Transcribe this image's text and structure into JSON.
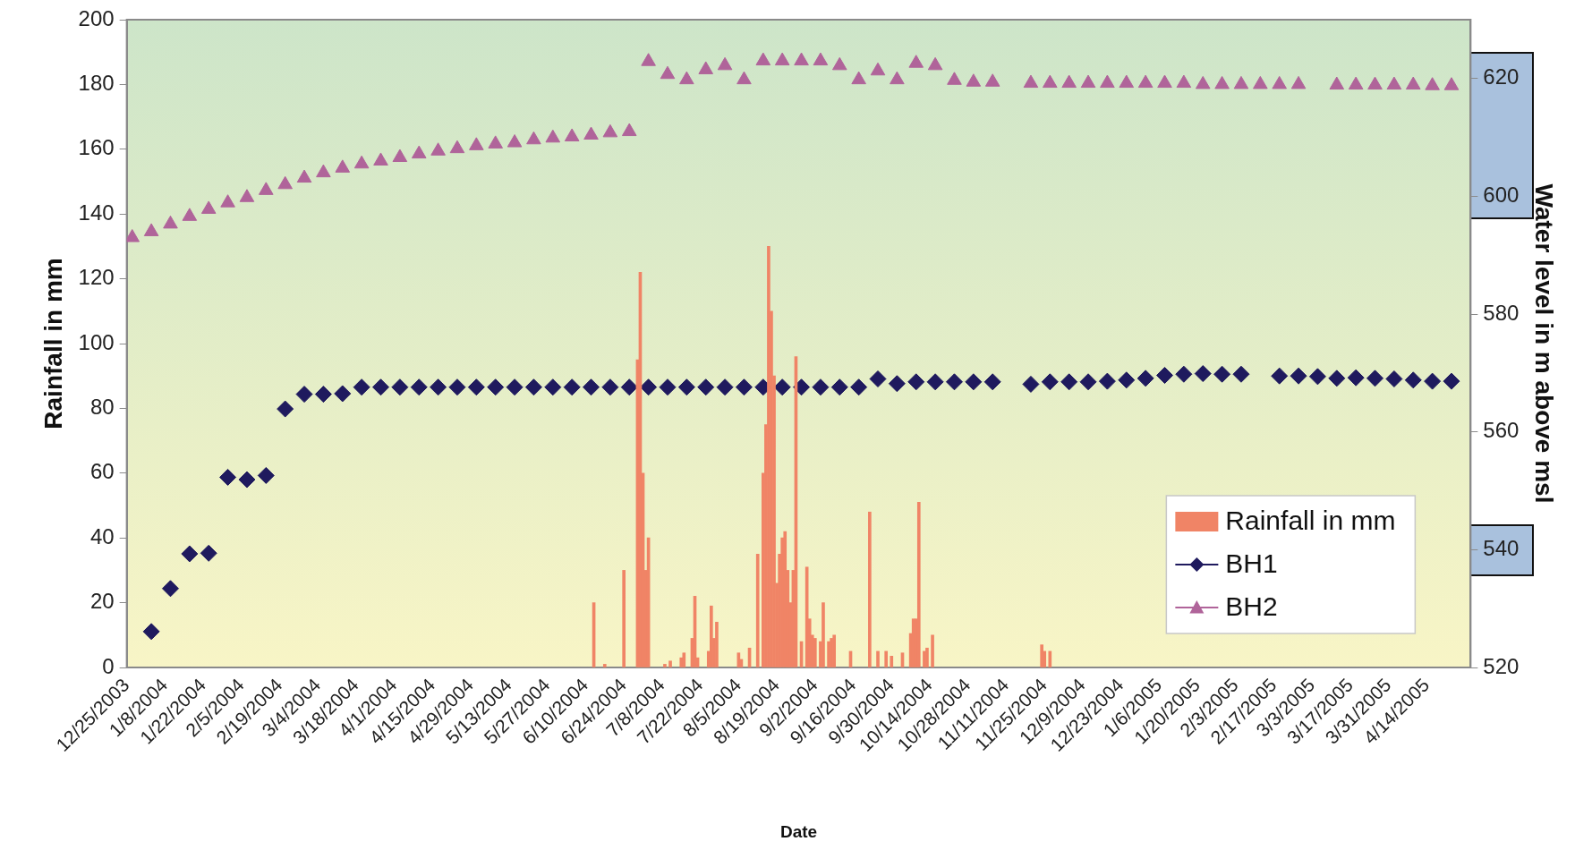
{
  "chart_data": {
    "type": "bar",
    "xlabel": "Date",
    "ylabel": "Rainfall in mm",
    "y2label": "Water level in m above msl",
    "xlim": [
      "2003-12-25",
      "2005-04-30"
    ],
    "xticks": [
      {
        "value": "2003-12-25",
        "label": "12/25/2003"
      },
      {
        "value": "2004-01-08",
        "label": "1/8/2004"
      },
      {
        "value": "2004-01-22",
        "label": "1/22/2004"
      },
      {
        "value": "2004-02-05",
        "label": "2/5/2004"
      },
      {
        "value": "2004-02-19",
        "label": "2/19/2004"
      },
      {
        "value": "2004-03-04",
        "label": "3/4/2004"
      },
      {
        "value": "2004-03-18",
        "label": "3/18/2004"
      },
      {
        "value": "2004-04-01",
        "label": "4/1/2004"
      },
      {
        "value": "2004-04-15",
        "label": "4/15/2004"
      },
      {
        "value": "2004-04-29",
        "label": "4/29/2004"
      },
      {
        "value": "2004-05-13",
        "label": "5/13/2004"
      },
      {
        "value": "2004-05-27",
        "label": "5/27/2004"
      },
      {
        "value": "2004-06-10",
        "label": "6/10/2004"
      },
      {
        "value": "2004-06-24",
        "label": "6/24/2004"
      },
      {
        "value": "2004-07-08",
        "label": "7/8/2004"
      },
      {
        "value": "2004-07-22",
        "label": "7/22/2004"
      },
      {
        "value": "2004-08-05",
        "label": "8/5/2004"
      },
      {
        "value": "2004-08-19",
        "label": "8/19/2004"
      },
      {
        "value": "2004-09-02",
        "label": "9/2/2004"
      },
      {
        "value": "2004-09-16",
        "label": "9/16/2004"
      },
      {
        "value": "2004-09-30",
        "label": "9/30/2004"
      },
      {
        "value": "2004-10-14",
        "label": "10/14/2004"
      },
      {
        "value": "2004-10-28",
        "label": "10/28/2004"
      },
      {
        "value": "2004-11-11",
        "label": "11/11/2004"
      },
      {
        "value": "2004-11-25",
        "label": "11/25/2004"
      },
      {
        "value": "2004-12-09",
        "label": "12/9/2004"
      },
      {
        "value": "2004-12-23",
        "label": "12/23/2004"
      },
      {
        "value": "2005-01-06",
        "label": "1/6/2005"
      },
      {
        "value": "2005-01-20",
        "label": "1/20/2005"
      },
      {
        "value": "2005-02-03",
        "label": "2/3/2005"
      },
      {
        "value": "2005-02-17",
        "label": "2/17/2005"
      },
      {
        "value": "2005-03-03",
        "label": "3/3/2005"
      },
      {
        "value": "2005-03-17",
        "label": "3/17/2005"
      },
      {
        "value": "2005-03-31",
        "label": "3/31/2005"
      },
      {
        "value": "2005-04-14",
        "label": "4/14/2005"
      }
    ],
    "ylim": [
      0,
      200
    ],
    "yticks": [
      0,
      20,
      40,
      60,
      80,
      100,
      120,
      140,
      160,
      180,
      200
    ],
    "y2lim": [
      520,
      630
    ],
    "y2ticks": [
      520,
      540,
      560,
      580,
      600,
      620
    ],
    "grid": false,
    "legend": "bottom right",
    "series": [
      {
        "name": "Rainfall in mm",
        "color": "#f08466",
        "x": [
          "2004-06-13",
          "2004-06-17",
          "2004-06-24",
          "2004-06-29",
          "2004-06-30",
          "2004-07-01",
          "2004-07-02",
          "2004-07-03",
          "2004-07-09",
          "2004-07-11",
          "2004-07-15",
          "2004-07-16",
          "2004-07-19",
          "2004-07-20",
          "2004-07-21",
          "2004-07-25",
          "2004-07-26",
          "2004-07-27",
          "2004-07-28",
          "2004-08-05",
          "2004-08-06",
          "2004-08-09",
          "2004-08-12",
          "2004-08-14",
          "2004-08-15",
          "2004-08-16",
          "2004-08-17",
          "2004-08-18",
          "2004-08-19",
          "2004-08-20",
          "2004-08-21",
          "2004-08-22",
          "2004-08-23",
          "2004-08-24",
          "2004-08-25",
          "2004-08-26",
          "2004-08-28",
          "2004-08-30",
          "2004-08-31",
          "2004-09-01",
          "2004-09-02",
          "2004-09-04",
          "2004-09-05",
          "2004-09-07",
          "2004-09-08",
          "2004-09-09",
          "2004-09-15",
          "2004-09-22",
          "2004-09-25",
          "2004-09-28",
          "2004-09-30",
          "2004-10-04",
          "2004-10-07",
          "2004-10-08",
          "2004-10-09",
          "2004-10-10",
          "2004-10-12",
          "2004-10-13",
          "2004-10-15",
          "2004-11-24",
          "2004-11-25",
          "2004-11-27"
        ],
        "values": [
          20,
          1,
          30,
          95,
          122,
          60,
          30,
          40,
          1,
          2,
          3,
          4.5,
          9,
          22,
          3,
          5,
          19,
          9,
          14,
          4.5,
          2.5,
          6,
          35,
          60,
          75,
          130,
          110,
          90,
          26,
          35,
          40,
          42,
          30,
          20,
          30,
          96,
          8,
          31,
          15,
          10,
          9,
          8,
          20,
          8,
          9,
          10,
          5,
          48,
          5,
          5,
          3.5,
          4.5,
          10.5,
          15,
          15,
          51,
          5,
          6,
          10,
          7,
          5,
          5
        ]
      },
      {
        "name": "BH1",
        "type": "scatter",
        "axis": "y2",
        "marker": "diamond",
        "color": "#1f1a5e",
        "x": [
          "2004-01-03",
          "2004-01-10",
          "2004-01-17",
          "2004-01-24",
          "2004-01-31",
          "2004-02-07",
          "2004-02-14",
          "2004-02-21",
          "2004-02-28",
          "2004-03-06",
          "2004-03-13",
          "2004-03-20",
          "2004-03-27",
          "2004-04-03",
          "2004-04-10",
          "2004-04-17",
          "2004-04-24",
          "2004-05-01",
          "2004-05-08",
          "2004-05-15",
          "2004-05-22",
          "2004-05-29",
          "2004-06-05",
          "2004-06-12",
          "2004-06-19",
          "2004-06-26",
          "2004-07-03",
          "2004-07-10",
          "2004-07-17",
          "2004-07-24",
          "2004-07-31",
          "2004-08-07",
          "2004-08-14",
          "2004-08-21",
          "2004-08-28",
          "2004-09-04",
          "2004-09-11",
          "2004-09-18",
          "2004-09-25",
          "2004-10-02",
          "2004-10-09",
          "2004-10-16",
          "2004-10-23",
          "2004-10-30",
          "2004-11-06",
          "2004-11-20",
          "2004-11-27",
          "2004-12-04",
          "2004-12-11",
          "2004-12-18",
          "2004-12-25",
          "2005-01-01",
          "2005-01-08",
          "2005-01-15",
          "2005-01-22",
          "2005-01-29",
          "2005-02-05",
          "2005-02-19",
          "2005-02-26",
          "2005-03-05",
          "2005-03-12",
          "2005-03-19",
          "2005-03-26",
          "2005-04-02",
          "2005-04-09",
          "2005-04-16",
          "2005-04-23"
        ],
        "values": [
          526.1,
          533.4,
          539.3,
          539.4,
          552.3,
          551.9,
          552.6,
          563.9,
          566.4,
          566.4,
          566.5,
          567.6,
          567.6,
          567.6,
          567.6,
          567.6,
          567.6,
          567.6,
          567.6,
          567.6,
          567.6,
          567.6,
          567.6,
          567.6,
          567.6,
          567.6,
          567.6,
          567.6,
          567.6,
          567.6,
          567.6,
          567.6,
          567.6,
          567.6,
          567.6,
          567.6,
          567.6,
          567.6,
          569.0,
          568.2,
          568.5,
          568.5,
          568.5,
          568.5,
          568.5,
          568.1,
          568.5,
          568.5,
          568.5,
          568.6,
          568.8,
          569.1,
          569.6,
          569.8,
          569.9,
          569.8,
          569.8,
          569.5,
          569.5,
          569.4,
          569.1,
          569.2,
          569.1,
          569.0,
          568.8,
          568.6,
          568.6
        ]
      },
      {
        "name": "BH2",
        "type": "scatter",
        "axis": "y2",
        "marker": "triangle",
        "color": "#b0649a",
        "x": [
          "2003-12-27",
          "2004-01-03",
          "2004-01-10",
          "2004-01-17",
          "2004-01-24",
          "2004-01-31",
          "2004-02-07",
          "2004-02-14",
          "2004-02-21",
          "2004-02-28",
          "2004-03-06",
          "2004-03-13",
          "2004-03-20",
          "2004-03-27",
          "2004-04-03",
          "2004-04-10",
          "2004-04-17",
          "2004-04-24",
          "2004-05-01",
          "2004-05-08",
          "2004-05-15",
          "2004-05-22",
          "2004-05-29",
          "2004-06-05",
          "2004-06-12",
          "2004-06-19",
          "2004-06-26",
          "2004-07-03",
          "2004-07-10",
          "2004-07-17",
          "2004-07-24",
          "2004-07-31",
          "2004-08-07",
          "2004-08-14",
          "2004-08-21",
          "2004-08-28",
          "2004-09-04",
          "2004-09-11",
          "2004-09-18",
          "2004-09-25",
          "2004-10-02",
          "2004-10-09",
          "2004-10-16",
          "2004-10-23",
          "2004-10-30",
          "2004-11-06",
          "2004-11-20",
          "2004-11-27",
          "2004-12-04",
          "2004-12-11",
          "2004-12-18",
          "2004-12-25",
          "2005-01-01",
          "2005-01-08",
          "2005-01-15",
          "2005-01-22",
          "2005-01-29",
          "2005-02-05",
          "2005-02-12",
          "2005-02-19",
          "2005-02-26",
          "2005-03-12",
          "2005-03-19",
          "2005-03-26",
          "2005-04-02",
          "2005-04-09",
          "2005-04-16",
          "2005-04-23"
        ],
        "values": [
          593.0,
          594.0,
          595.3,
          596.6,
          597.8,
          598.9,
          599.8,
          601.0,
          602.0,
          603.1,
          604.0,
          604.8,
          605.5,
          606.0,
          606.6,
          607.2,
          607.7,
          608.1,
          608.6,
          608.9,
          609.1,
          609.6,
          609.9,
          610.1,
          610.4,
          610.8,
          611.0,
          622.9,
          620.7,
          619.8,
          621.5,
          622.2,
          619.8,
          623.0,
          623.0,
          623.0,
          623.0,
          622.2,
          619.8,
          621.3,
          619.8,
          622.6,
          622.2,
          619.7,
          619.4,
          619.4,
          619.2,
          619.2,
          619.2,
          619.2,
          619.2,
          619.2,
          619.2,
          619.2,
          619.2,
          619.0,
          619.0,
          619.0,
          619.0,
          619.0,
          619.0,
          618.9,
          618.9,
          618.9,
          618.9,
          618.9,
          618.8,
          618.8
        ]
      }
    ]
  }
}
